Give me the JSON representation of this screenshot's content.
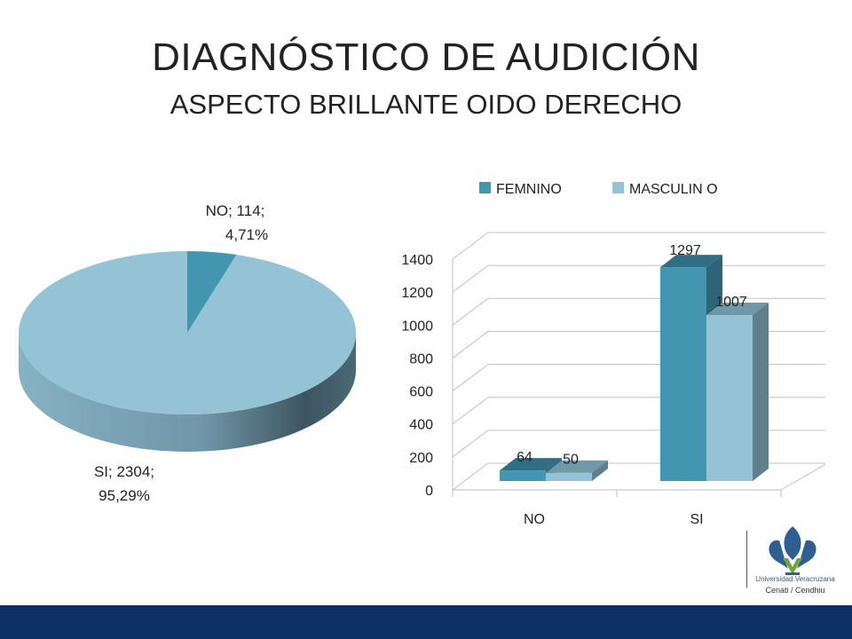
{
  "header": {
    "title": "DIAGNÓSTICO DE AUDICIÓN",
    "subtitle": "ASPECTO BRILLANTE OIDO DERECHO"
  },
  "logo": {
    "line1": "Universidad Veracruzana",
    "line2": "Cenati / Cendhiu"
  },
  "colors": {
    "pie_no": "#4396b0",
    "pie_si": "#93c3d5",
    "femenino": "#4396b0",
    "masculino": "#93c3d5",
    "footer": "#0b2f66"
  },
  "chart_data": [
    {
      "type": "pie",
      "slices": [
        {
          "label": "NO",
          "value": 114,
          "percent": "4,71%",
          "text_line1": "NO; 114;",
          "text_line2": "4,71%"
        },
        {
          "label": "SI",
          "value": 2304,
          "percent": "95,29%",
          "text_line1": "SI; 2304;",
          "text_line2": "95,29%"
        }
      ]
    },
    {
      "type": "bar",
      "categories": [
        "NO",
        "SI"
      ],
      "series": [
        {
          "name": "FEMNINO",
          "values": [
            64,
            1297
          ]
        },
        {
          "name": "MASCULIN O",
          "values": [
            50,
            1007
          ]
        }
      ],
      "ylim": [
        0,
        1400
      ],
      "yticks": [
        "0",
        "200",
        "400",
        "600",
        "800",
        "1000",
        "1200",
        "1400"
      ],
      "legend": "top",
      "grid": true
    }
  ]
}
